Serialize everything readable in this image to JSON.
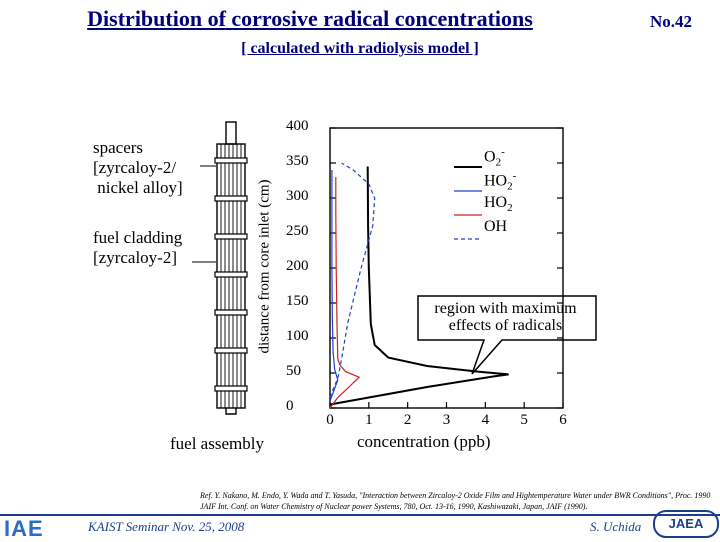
{
  "slide": {
    "title": "Distribution of corrosive radical concentrations",
    "slide_number": "No.42",
    "subtitle": "[ calculated with radiolysis model ]"
  },
  "assembly": {
    "spacers_label": "spacers\n[zyrcaloy-2/\n nickel alloy]",
    "cladding_label": "fuel cladding\n[zyrcaloy-2]",
    "caption": "fuel assembly"
  },
  "annotation": "region with maximum\neffects of radicals",
  "reference": "Ref. Y. Nakano, M. Endo, Y. Wada and T. Yasuda, \"Interaction between Zircaloy-2 Oxide Film and Hightemperature Water under BWR Conditions\", Proc. 1990 JAIF Int. Conf. on Water Chemistry of Nuclear power Systems, 780, Oct. 13-16, 1990, Kashiwazaki, Japan, JAIF (1990).",
  "footer": {
    "seminar": "KAIST Seminar  Nov. 25, 2008",
    "author": "S. Uchida",
    "left_logo": "IAE",
    "right_logo": "JAEA"
  },
  "colors": {
    "title": "#00007a",
    "footer_blue": "#1c3f8c",
    "o2_minus": "#000000",
    "ho2_minus": "#1f3fd0",
    "ho2": "#d02020",
    "oh": "#1f3fd0"
  },
  "chart_data": {
    "type": "line",
    "xlabel": "concentration (ppb)",
    "ylabel": "distance from core inlet (cm)",
    "xlim": [
      0,
      6
    ],
    "ylim": [
      0,
      400
    ],
    "x_ticks": [
      "0",
      "1",
      "2",
      "3",
      "4",
      "5",
      "6"
    ],
    "y_ticks": [
      "0",
      "50",
      "100",
      "150",
      "200",
      "250",
      "300",
      "350",
      "400"
    ],
    "legend_position": "top-right",
    "grid": false,
    "series": [
      {
        "name": "O2-",
        "name_main": "O",
        "name_sub": "2",
        "name_sup": "-",
        "style": "solid",
        "color": "#000000",
        "points": [
          [
            0.0,
            5
          ],
          [
            1.0,
            15
          ],
          [
            2.5,
            30
          ],
          [
            4.2,
            45
          ],
          [
            4.6,
            48
          ],
          [
            3.8,
            52
          ],
          [
            2.5,
            60
          ],
          [
            1.5,
            72
          ],
          [
            1.15,
            90
          ],
          [
            1.05,
            120
          ],
          [
            1.0,
            200
          ],
          [
            0.98,
            260
          ],
          [
            0.97,
            345
          ]
        ]
      },
      {
        "name": "HO2-",
        "name_main": "HO",
        "name_sub": "2",
        "name_sup": "-",
        "style": "solid",
        "color": "#1f3fd0",
        "points": [
          [
            0.0,
            10
          ],
          [
            0.1,
            25
          ],
          [
            0.2,
            40
          ],
          [
            0.12,
            55
          ],
          [
            0.08,
            80
          ],
          [
            0.06,
            130
          ],
          [
            0.05,
            200
          ],
          [
            0.05,
            260
          ],
          [
            0.05,
            340
          ]
        ]
      },
      {
        "name": "HO2",
        "name_main": "HO",
        "name_sub": "2",
        "name_sup": "",
        "style": "solid",
        "color": "#d02020",
        "points": [
          [
            0.0,
            0
          ],
          [
            0.2,
            15
          ],
          [
            0.45,
            28
          ],
          [
            0.75,
            44
          ],
          [
            0.4,
            52
          ],
          [
            0.25,
            62
          ],
          [
            0.2,
            70
          ],
          [
            0.18,
            120
          ],
          [
            0.16,
            200
          ],
          [
            0.15,
            280
          ],
          [
            0.15,
            330
          ]
        ]
      },
      {
        "name": "OH",
        "name_main": "OH",
        "name_sub": "",
        "name_sup": "",
        "style": "dashed",
        "color": "#1f3fd0",
        "points": [
          [
            0.0,
            15
          ],
          [
            0.1,
            30
          ],
          [
            0.2,
            42
          ],
          [
            0.3,
            70
          ],
          [
            0.45,
            120
          ],
          [
            0.8,
            200
          ],
          [
            1.1,
            260
          ],
          [
            1.15,
            300
          ],
          [
            1.0,
            320
          ],
          [
            0.6,
            340
          ],
          [
            0.3,
            350
          ]
        ]
      }
    ]
  }
}
